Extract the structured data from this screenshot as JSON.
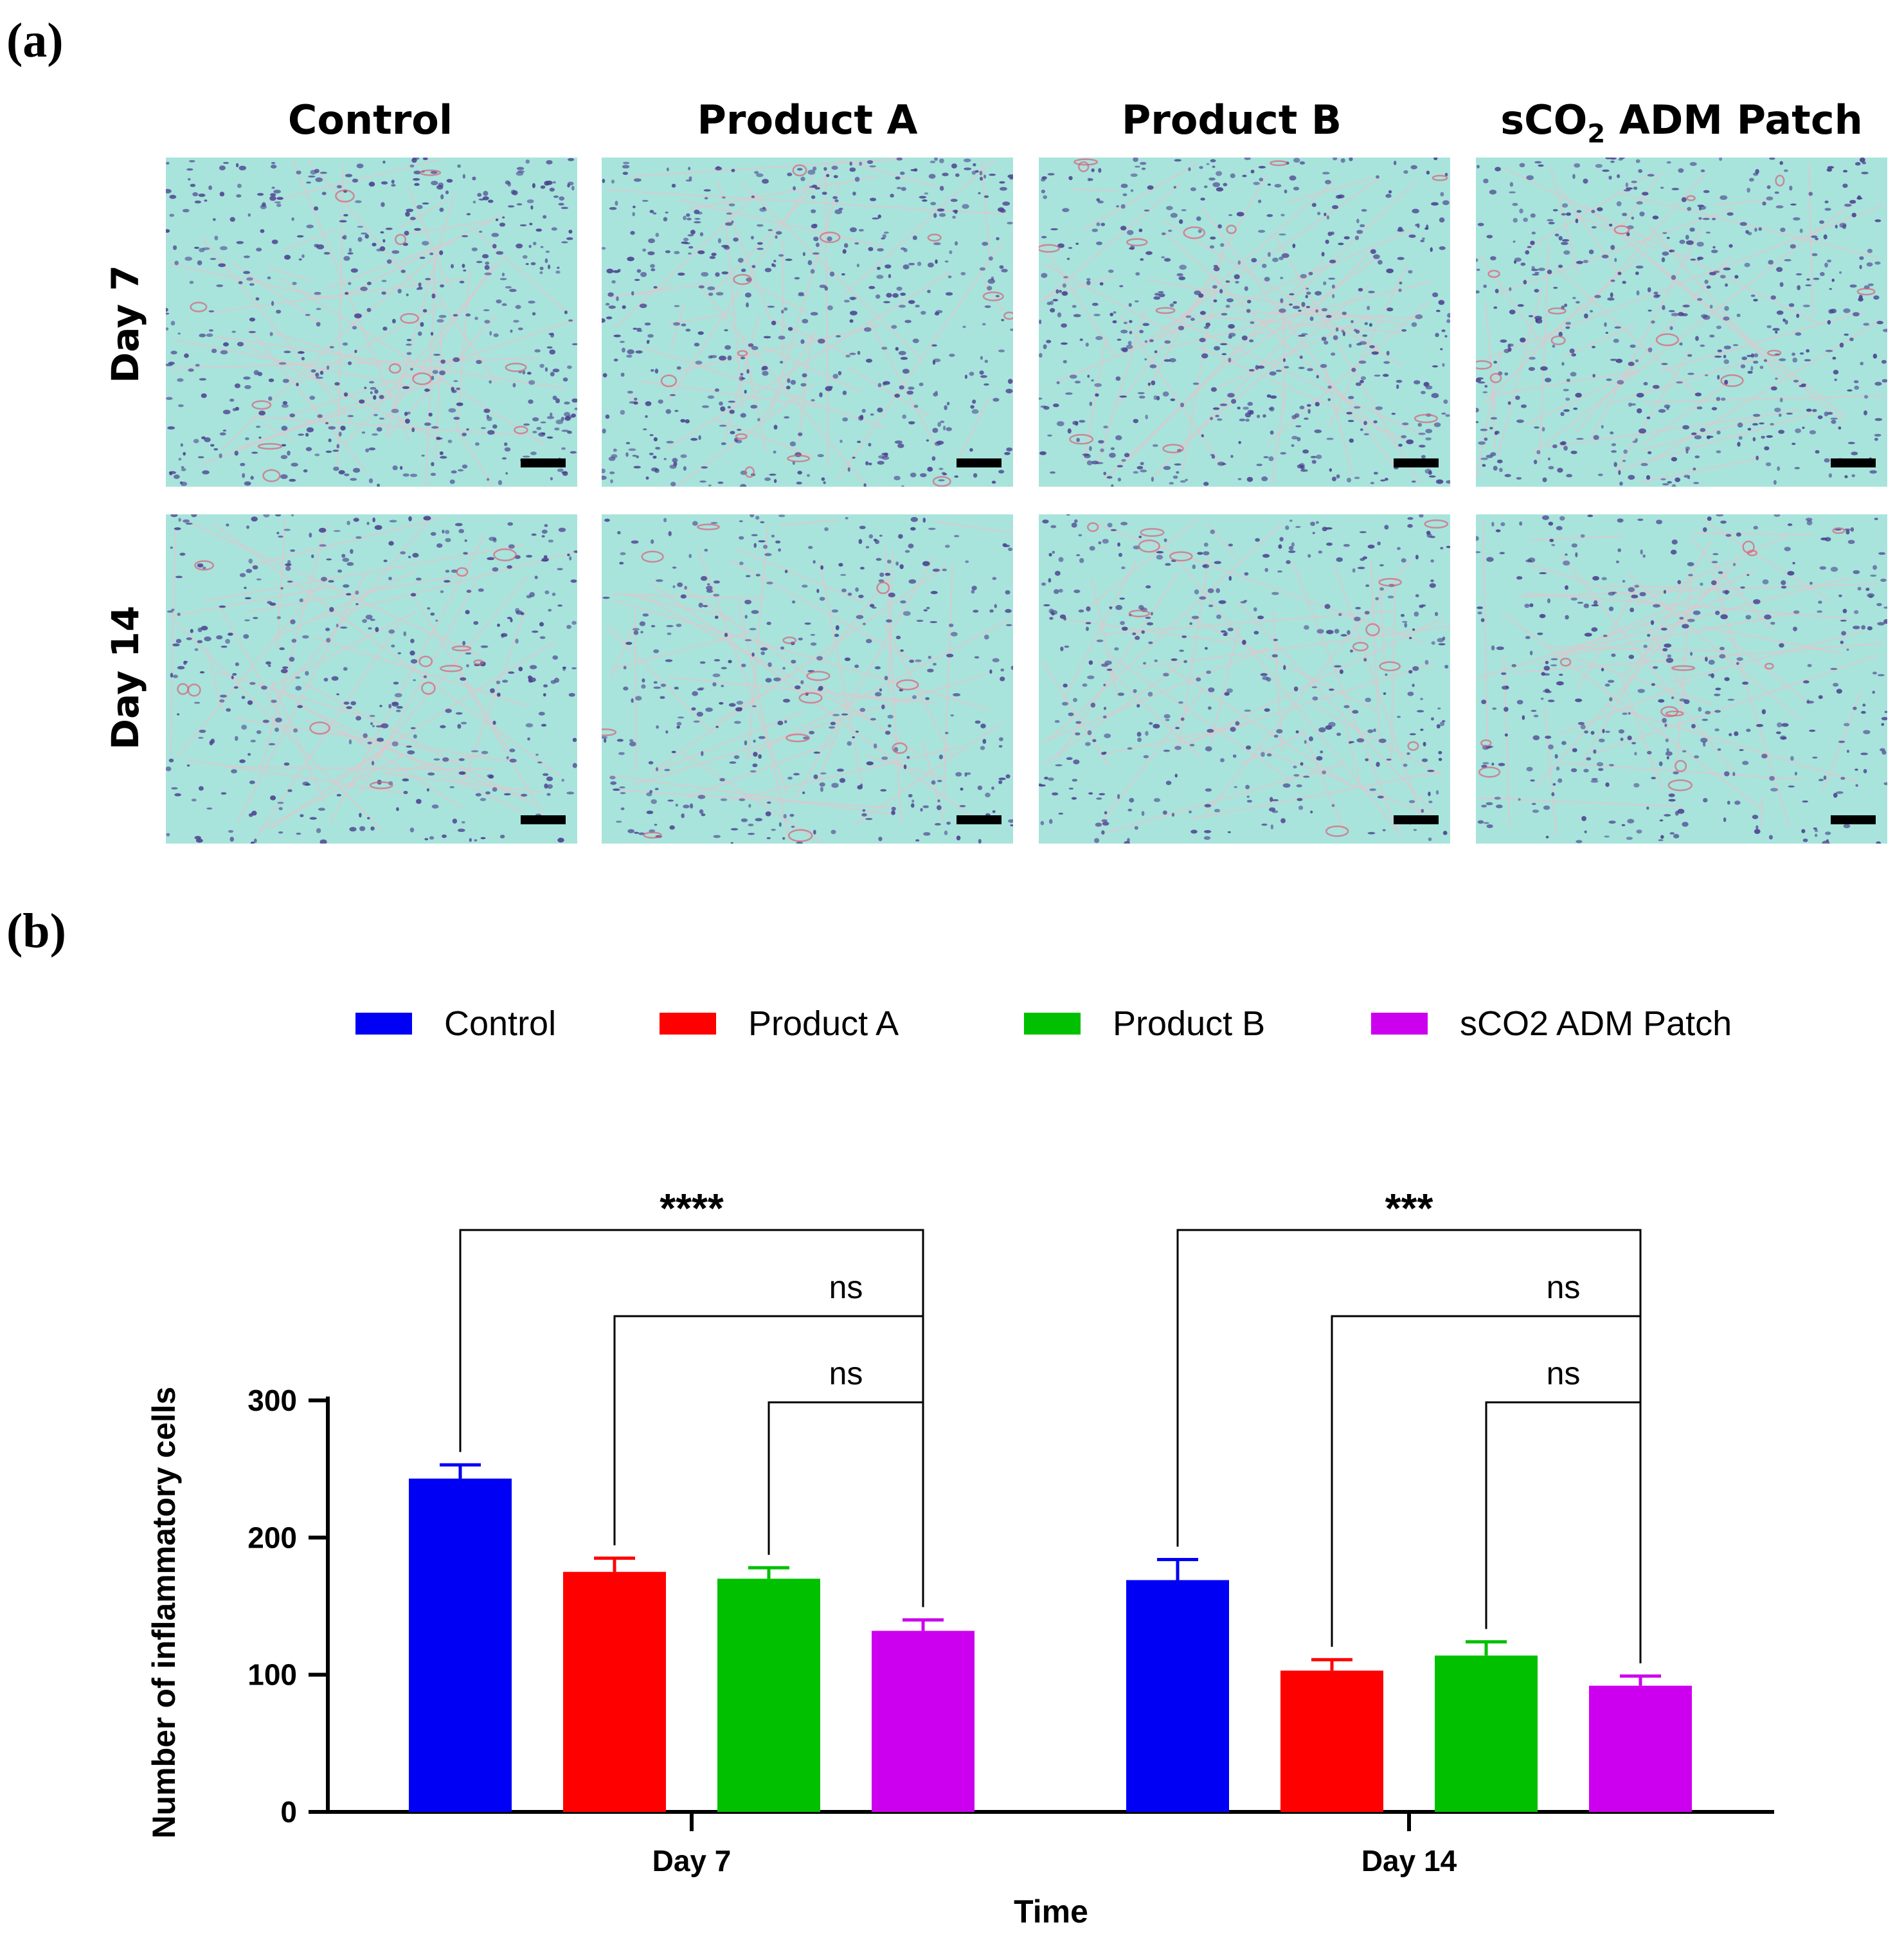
{
  "panel_a": {
    "label": "(a)",
    "columns": [
      {
        "text": "Control",
        "sub": "",
        "suffix": ""
      },
      {
        "text": "Product A",
        "sub": "",
        "suffix": ""
      },
      {
        "text": "Product B",
        "sub": "",
        "suffix": ""
      },
      {
        "text": "sCO",
        "sub": "2",
        "suffix": " ADM Patch"
      }
    ],
    "rows": [
      "Day 7",
      "Day 14"
    ],
    "colors": {
      "tissue": "#a8e4dc",
      "nuclei": "#4b3f8f",
      "vessels": "#d9607a",
      "scale_bar": "#000000"
    }
  },
  "panel_b": {
    "label": "(b)"
  },
  "chart_data": {
    "type": "bar",
    "categories": [
      "Day 7",
      "Day 14"
    ],
    "series": [
      {
        "name": "Control",
        "color": "#0000f5",
        "values": [
          243,
          169
        ],
        "errors": [
          10,
          15
        ]
      },
      {
        "name": "Product A",
        "color": "#ff0000",
        "values": [
          175,
          103
        ],
        "errors": [
          10,
          8
        ]
      },
      {
        "name": "Product B",
        "color": "#00c000",
        "values": [
          170,
          114
        ],
        "errors": [
          8,
          10
        ]
      },
      {
        "name": "sCO2 ADM Patch",
        "color": "#cc00ee",
        "values": [
          132,
          92
        ],
        "errors": [
          8,
          7
        ]
      }
    ],
    "ylim": [
      0,
      300
    ],
    "yticks": [
      0,
      100,
      200,
      300
    ],
    "ylabel": "Number of inflammatory cells",
    "xlabel": "Time",
    "legend_position": "top",
    "significance": [
      {
        "group": "Day 7",
        "from": "Control",
        "to": "sCO2 ADM Patch",
        "label": "****"
      },
      {
        "group": "Day 7",
        "from": "Product A",
        "to": "sCO2 ADM Patch",
        "label": "ns"
      },
      {
        "group": "Day 7",
        "from": "Product B",
        "to": "sCO2 ADM Patch",
        "label": "ns"
      },
      {
        "group": "Day 14",
        "from": "Control",
        "to": "sCO2 ADM Patch",
        "label": "***"
      },
      {
        "group": "Day 14",
        "from": "Product A",
        "to": "sCO2 ADM Patch",
        "label": "ns"
      },
      {
        "group": "Day 14",
        "from": "Product B",
        "to": "sCO2 ADM Patch",
        "label": "ns"
      }
    ]
  }
}
